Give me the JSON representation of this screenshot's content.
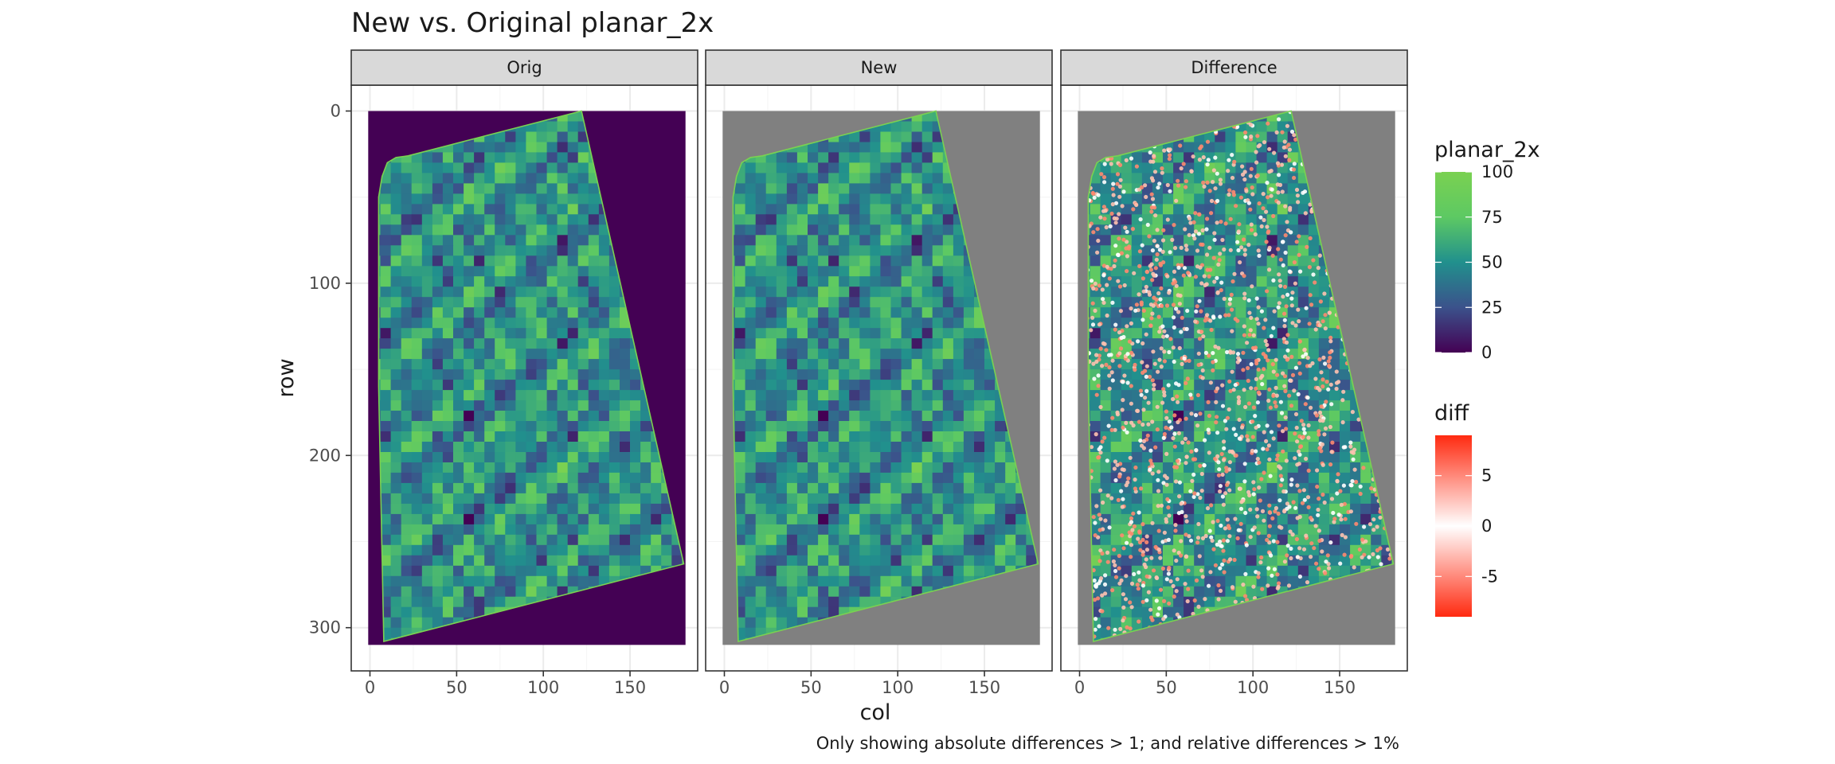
{
  "chart_data": {
    "type": "heatmap",
    "title": "New vs. Original planar_2x",
    "caption": "Only showing absolute differences > 1; and relative differences > 1%",
    "xlabel": "col",
    "ylabel": "row",
    "facets": [
      "Orig",
      "New",
      "Difference"
    ],
    "x_ticks": [
      0,
      50,
      100,
      150
    ],
    "y_ticks": [
      0,
      100,
      200,
      300
    ],
    "xlim": [
      -8,
      190
    ],
    "ylim": [
      0,
      320
    ],
    "grid": true,
    "legend_position": "right",
    "planar_boundary": {
      "x": [
        122,
        181,
        8,
        5,
        5,
        7,
        10,
        15,
        22
      ],
      "y": [
        0,
        263,
        308,
        160,
        50,
        38,
        30,
        27,
        26
      ]
    },
    "scales": {
      "planar_2x": {
        "title": "planar_2x",
        "breaks": [
          0,
          25,
          50,
          75,
          100
        ],
        "range": [
          0,
          100
        ],
        "colors": [
          "#440154",
          "#3b528b",
          "#21908d",
          "#5dc963",
          "#7ad151"
        ]
      },
      "diff": {
        "title": "diff",
        "breaks": [
          5,
          0,
          -5
        ],
        "range": [
          -9,
          9
        ],
        "colors": [
          "#ff2a10",
          "#ffffff",
          "#ff2a10"
        ]
      }
    },
    "colors": {
      "panel_background": "#ffffff",
      "outside_orig": "#440154",
      "outside_masked": "#808080",
      "boundary": "#7ad151",
      "strip_fill": "#d9d9d9",
      "grid": "#ebebeb"
    }
  }
}
